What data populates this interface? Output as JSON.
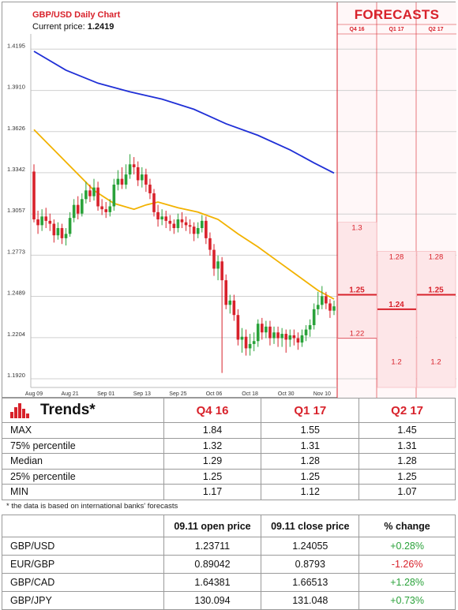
{
  "chart_data": {
    "type": "candlestick",
    "title": "GBP/USD Daily Chart",
    "price_label": "Current price:",
    "price_value": "1.2419",
    "ylim": [
      1.186,
      1.43
    ],
    "y_ticks": [
      "1.4195",
      "1.3910",
      "1.3626",
      "1.3342",
      "1.3057",
      "1.2773",
      "1.2489",
      "1.2204",
      "1.1920"
    ],
    "x_ticks": [
      "Aug 09",
      "Aug 21",
      "Sep 01",
      "Sep 13",
      "Sep 25",
      "Oct 06",
      "Oct 18",
      "Oct 30",
      "Nov 10"
    ],
    "x_tick_index": [
      0,
      9,
      18,
      27,
      36,
      45,
      54,
      63,
      72
    ],
    "candles": [
      [
        1.335,
        1.302,
        1.34,
        1.3
      ],
      [
        1.302,
        1.298,
        1.308,
        1.292
      ],
      [
        1.298,
        1.304,
        1.309,
        1.294
      ],
      [
        1.304,
        1.301,
        1.31,
        1.296
      ],
      [
        1.301,
        1.299,
        1.306,
        1.294
      ],
      [
        1.299,
        1.291,
        1.302,
        1.286
      ],
      [
        1.291,
        1.296,
        1.3,
        1.288
      ],
      [
        1.296,
        1.289,
        1.299,
        1.285
      ],
      [
        1.289,
        1.292,
        1.296,
        1.284
      ],
      [
        1.292,
        1.303,
        1.307,
        1.29
      ],
      [
        1.303,
        1.312,
        1.316,
        1.3
      ],
      [
        1.312,
        1.306,
        1.318,
        1.302
      ],
      [
        1.306,
        1.316,
        1.32,
        1.304
      ],
      [
        1.316,
        1.322,
        1.328,
        1.313
      ],
      [
        1.322,
        1.318,
        1.326,
        1.314
      ],
      [
        1.318,
        1.324,
        1.33,
        1.315
      ],
      [
        1.324,
        1.311,
        1.328,
        1.308
      ],
      [
        1.311,
        1.309,
        1.316,
        1.305
      ],
      [
        1.309,
        1.307,
        1.314,
        1.303
      ],
      [
        1.307,
        1.311,
        1.316,
        1.304
      ],
      [
        1.311,
        1.326,
        1.33,
        1.308
      ],
      [
        1.326,
        1.33,
        1.336,
        1.322
      ],
      [
        1.33,
        1.326,
        1.338,
        1.323
      ],
      [
        1.326,
        1.333,
        1.34,
        1.323
      ],
      [
        1.333,
        1.34,
        1.347,
        1.33
      ],
      [
        1.34,
        1.338,
        1.345,
        1.333
      ],
      [
        1.338,
        1.329,
        1.342,
        1.325
      ],
      [
        1.329,
        1.333,
        1.338,
        1.324
      ],
      [
        1.333,
        1.326,
        1.337,
        1.321
      ],
      [
        1.326,
        1.32,
        1.33,
        1.316
      ],
      [
        1.32,
        1.307,
        1.323,
        1.304
      ],
      [
        1.307,
        1.302,
        1.312,
        1.297
      ],
      [
        1.302,
        1.304,
        1.309,
        1.298
      ],
      [
        1.304,
        1.301,
        1.308,
        1.296
      ],
      [
        1.301,
        1.299,
        1.305,
        1.294
      ],
      [
        1.299,
        1.296,
        1.302,
        1.292
      ],
      [
        1.296,
        1.302,
        1.306,
        1.293
      ],
      [
        1.302,
        1.3,
        1.307,
        1.296
      ],
      [
        1.3,
        1.298,
        1.304,
        1.294
      ],
      [
        1.298,
        1.297,
        1.302,
        1.292
      ],
      [
        1.297,
        1.292,
        1.3,
        1.287
      ],
      [
        1.292,
        1.296,
        1.3,
        1.289
      ],
      [
        1.296,
        1.301,
        1.305,
        1.293
      ],
      [
        1.301,
        1.289,
        1.304,
        1.285
      ],
      [
        1.289,
        1.281,
        1.293,
        1.277
      ],
      [
        1.281,
        1.268,
        1.285,
        1.263
      ],
      [
        1.268,
        1.273,
        1.277,
        1.26
      ],
      [
        1.273,
        1.26,
        1.276,
        1.196
      ],
      [
        1.26,
        1.243,
        1.264,
        1.24
      ],
      [
        1.243,
        1.246,
        1.25,
        1.237
      ],
      [
        1.246,
        1.236,
        1.25,
        1.232
      ],
      [
        1.236,
        1.219,
        1.24,
        1.215
      ],
      [
        1.219,
        1.221,
        1.227,
        1.21
      ],
      [
        1.221,
        1.213,
        1.226,
        1.208
      ],
      [
        1.213,
        1.216,
        1.223,
        1.208
      ],
      [
        1.216,
        1.218,
        1.224,
        1.211
      ],
      [
        1.218,
        1.23,
        1.233,
        1.214
      ],
      [
        1.23,
        1.224,
        1.234,
        1.219
      ],
      [
        1.224,
        1.228,
        1.232,
        1.22
      ],
      [
        1.228,
        1.22,
        1.232,
        1.215
      ],
      [
        1.22,
        1.224,
        1.228,
        1.216
      ],
      [
        1.224,
        1.22,
        1.228,
        1.214
      ],
      [
        1.22,
        1.223,
        1.227,
        1.214
      ],
      [
        1.223,
        1.219,
        1.226,
        1.21
      ],
      [
        1.219,
        1.222,
        1.226,
        1.214
      ],
      [
        1.222,
        1.22,
        1.226,
        1.215
      ],
      [
        1.22,
        1.217,
        1.224,
        1.212
      ],
      [
        1.217,
        1.222,
        1.226,
        1.214
      ],
      [
        1.222,
        1.226,
        1.229,
        1.218
      ],
      [
        1.226,
        1.229,
        1.233,
        1.221
      ],
      [
        1.229,
        1.24,
        1.244,
        1.226
      ],
      [
        1.24,
        1.243,
        1.252,
        1.236
      ],
      [
        1.243,
        1.249,
        1.256,
        1.24
      ],
      [
        1.249,
        1.244,
        1.252,
        1.24
      ],
      [
        1.244,
        1.239,
        1.247,
        1.234
      ],
      [
        1.239,
        1.242,
        1.246,
        1.236
      ]
    ],
    "ma_yellow": [
      [
        0,
        1.364
      ],
      [
        5,
        1.35
      ],
      [
        10,
        1.336
      ],
      [
        15,
        1.322
      ],
      [
        20,
        1.313
      ],
      [
        25,
        1.309
      ],
      [
        28,
        1.312
      ],
      [
        31,
        1.314
      ],
      [
        36,
        1.31
      ],
      [
        41,
        1.307
      ],
      [
        46,
        1.302
      ],
      [
        51,
        1.292
      ],
      [
        56,
        1.283
      ],
      [
        61,
        1.273
      ],
      [
        66,
        1.263
      ],
      [
        71,
        1.253
      ],
      [
        75,
        1.247
      ]
    ],
    "ma_blue": [
      [
        0,
        1.418
      ],
      [
        8,
        1.405
      ],
      [
        16,
        1.396
      ],
      [
        24,
        1.39
      ],
      [
        32,
        1.385
      ],
      [
        40,
        1.378
      ],
      [
        48,
        1.368
      ],
      [
        56,
        1.36
      ],
      [
        64,
        1.35
      ],
      [
        70,
        1.341
      ],
      [
        75,
        1.334
      ]
    ],
    "colors": {
      "up": "#2aa23a",
      "down": "#d8222b",
      "blue": "#1f2fd6",
      "yellow": "#f2b200",
      "forecast_bg": "#fde6e8"
    }
  },
  "forecast_panel": {
    "title": "FORECASTS",
    "columns": [
      {
        "label": "Q4 16",
        "max": "1.3",
        "median": "1.25",
        "min": "1.22",
        "max_v": 1.3,
        "median_v": 1.25,
        "min_v": 1.22
      },
      {
        "label": "Q1 17",
        "max": "1.28",
        "median": "1.24",
        "min": "1.2",
        "max_v": 1.28,
        "median_v": 1.24,
        "min_v": 1.2
      },
      {
        "label": "Q2 17",
        "max": "1.28",
        "median": "1.25",
        "min": "1.2",
        "max_v": 1.28,
        "median_v": 1.25,
        "min_v": 1.2
      }
    ]
  },
  "trends": {
    "title": "Trends*",
    "columns": [
      "Q4 16",
      "Q1 17",
      "Q2 17"
    ],
    "rows": [
      {
        "label": "MAX",
        "values": [
          "1.84",
          "1.55",
          "1.45"
        ]
      },
      {
        "label": "75% percentile",
        "values": [
          "1.32",
          "1.31",
          "1.31"
        ]
      },
      {
        "label": "Median",
        "values": [
          "1.29",
          "1.28",
          "1.28"
        ]
      },
      {
        "label": "25% percentile",
        "values": [
          "1.25",
          "1.25",
          "1.25"
        ]
      },
      {
        "label": "MIN",
        "values": [
          "1.17",
          "1.12",
          "1.07"
        ]
      }
    ],
    "note": "* the data is based on international banks' forecasts"
  },
  "fx": {
    "headers": [
      "",
      "09.11 open price",
      "09.11 close price",
      "% change"
    ],
    "rows": [
      {
        "pair": "GBP/USD",
        "open": "1.23711",
        "close": "1.24055",
        "change": "+0.28%",
        "dir": "pos"
      },
      {
        "pair": "EUR/GBP",
        "open": "0.89042",
        "close": "0.8793",
        "change": "-1.26%",
        "dir": "neg"
      },
      {
        "pair": "GBP/CAD",
        "open": "1.64381",
        "close": "1.66513",
        "change": "+1.28%",
        "dir": "pos"
      },
      {
        "pair": "GBP/JPY",
        "open": "130.094",
        "close": "131.048",
        "change": "+0.73%",
        "dir": "pos"
      }
    ]
  }
}
